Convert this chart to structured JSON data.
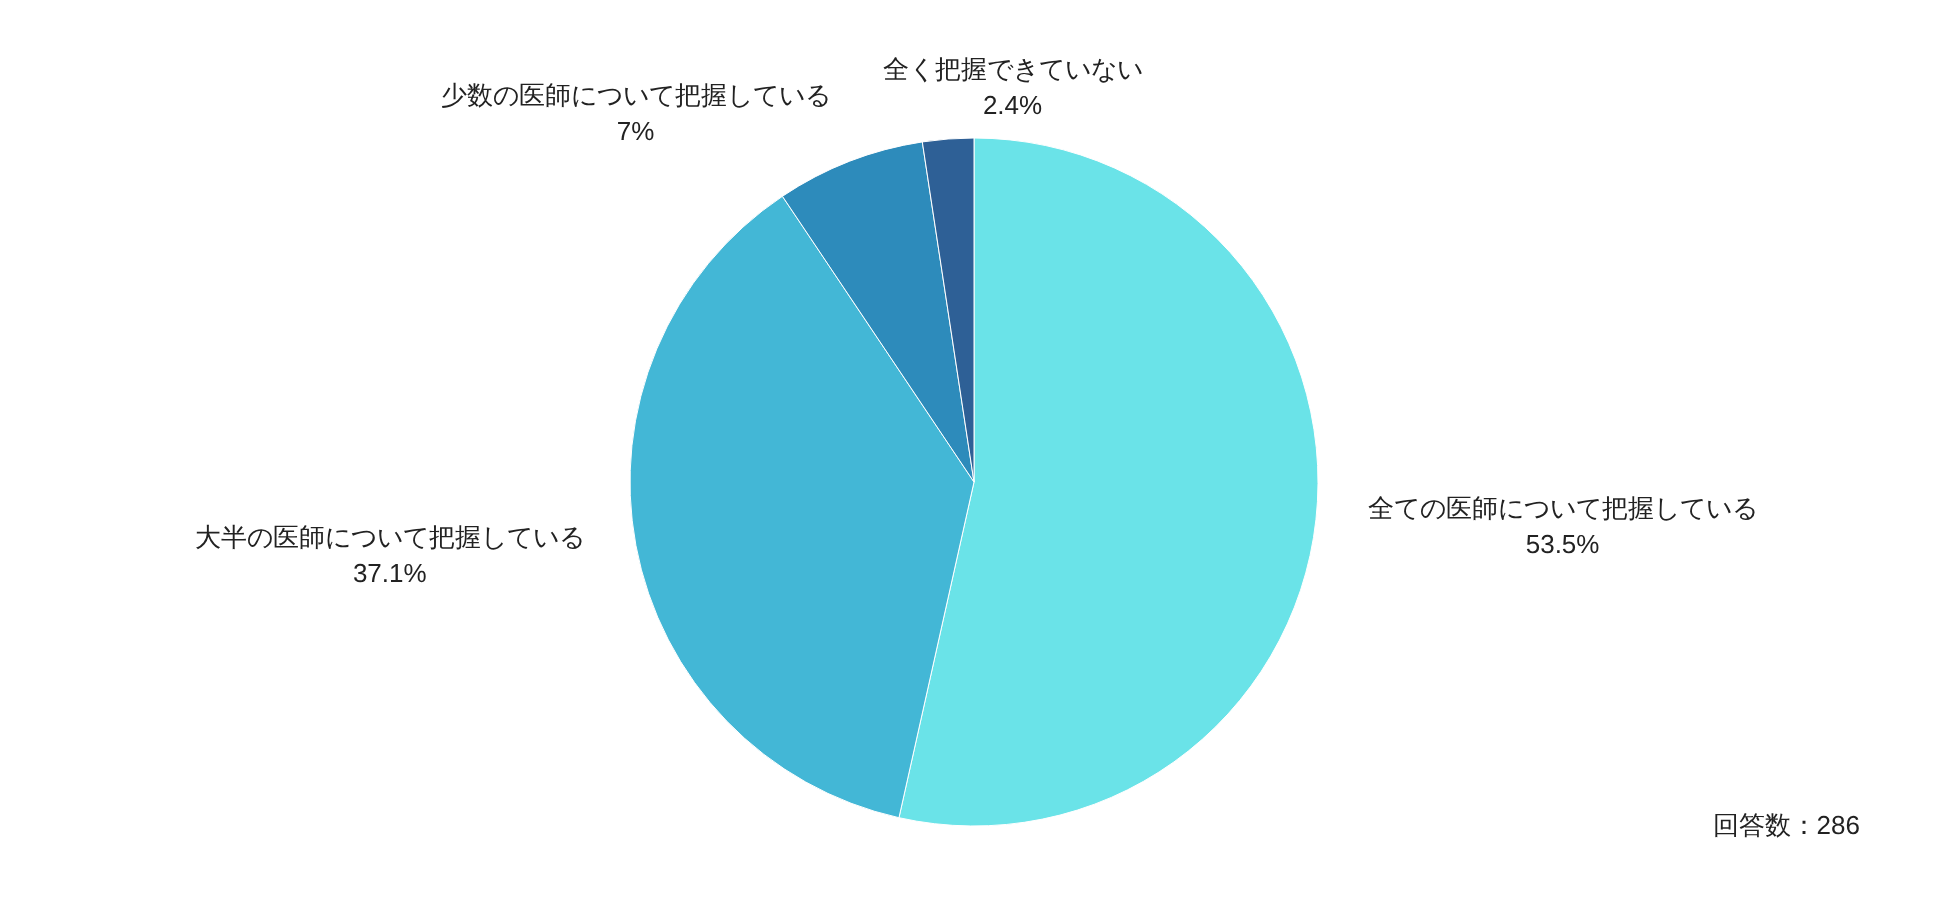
{
  "chart_data": {
    "type": "pie",
    "categories": [
      "全ての医師について把握している",
      "大半の医師について把握している",
      "少数の医師について把握している",
      "全く把握できていない"
    ],
    "values": [
      53.5,
      37.1,
      7,
      2.4
    ],
    "colors": [
      "#6ae3e8",
      "#43b7d6",
      "#2d8bbb",
      "#2e6096"
    ],
    "value_labels": [
      "53.5%",
      "37.1%",
      "7%",
      "2.4%"
    ],
    "annotations": [
      "回答数：286"
    ]
  }
}
